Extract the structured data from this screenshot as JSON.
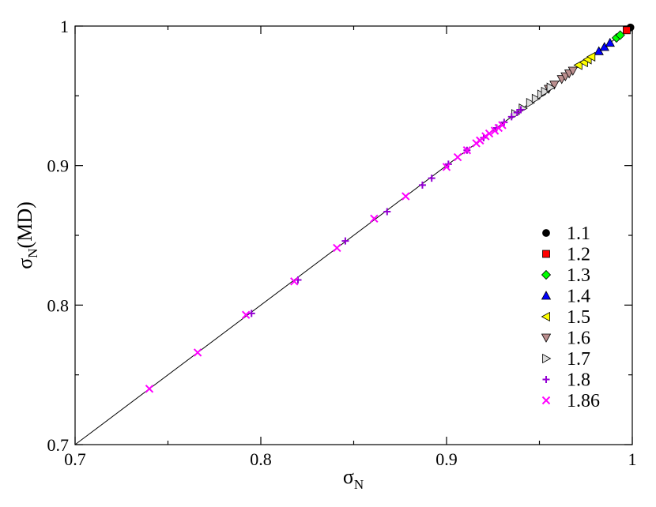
{
  "chart_data": {
    "type": "scatter",
    "x_label": [
      "σ",
      "N"
    ],
    "y_label": [
      "σ",
      "N",
      "(MD)"
    ],
    "xlim": [
      0.7,
      1.0
    ],
    "ylim": [
      0.7,
      1.0
    ],
    "xticks": [
      0.7,
      0.8,
      0.9,
      1
    ],
    "yticks": [
      0.7,
      0.8,
      0.9,
      1
    ],
    "minor_ticks": [
      0.75,
      0.85,
      0.95
    ],
    "diagonal": true,
    "legend": "right",
    "series": [
      {
        "name": "1.1",
        "marker": "circle",
        "color": "#000000",
        "x": [
          0.999
        ],
        "y": [
          0.999
        ]
      },
      {
        "name": "1.2",
        "marker": "square",
        "color": "#ff0000",
        "x": [
          0.997
        ],
        "y": [
          0.997
        ]
      },
      {
        "name": "1.3",
        "marker": "diamond",
        "color": "#00ff00",
        "x": [
          0.9915,
          0.9935
        ],
        "y": [
          0.9915,
          0.9935
        ]
      },
      {
        "name": "1.4",
        "marker": "triangle-up",
        "color": "#0000ff",
        "x": [
          0.982,
          0.985,
          0.988
        ],
        "y": [
          0.982,
          0.985,
          0.988
        ]
      },
      {
        "name": "1.5",
        "marker": "triangle-left",
        "color": "#ffff00",
        "x": [
          0.971,
          0.974,
          0.976,
          0.978
        ],
        "y": [
          0.972,
          0.974,
          0.976,
          0.978
        ]
      },
      {
        "name": "1.6",
        "marker": "triangle-down",
        "color": "#bc8f8f",
        "x": [
          0.955,
          0.958,
          0.962,
          0.964,
          0.966,
          0.968
        ],
        "y": [
          0.955,
          0.958,
          0.962,
          0.964,
          0.966,
          0.968
        ]
      },
      {
        "name": "1.7",
        "marker": "triangle-right",
        "color": "#dcdcdc",
        "x": [
          0.937,
          0.941,
          0.945,
          0.948,
          0.951,
          0.953,
          0.956
        ],
        "y": [
          0.937,
          0.941,
          0.945,
          0.948,
          0.951,
          0.953,
          0.956
        ]
      },
      {
        "name": "1.8",
        "marker": "plus",
        "color": "#9400d3",
        "x": [
          0.795,
          0.82,
          0.8455,
          0.868,
          0.887,
          0.892,
          0.901,
          0.911,
          0.92,
          0.927,
          0.931,
          0.935,
          0.938,
          0.94
        ],
        "y": [
          0.794,
          0.818,
          0.846,
          0.867,
          0.886,
          0.891,
          0.901,
          0.911,
          0.92,
          0.927,
          0.931,
          0.935,
          0.938,
          0.94
        ]
      },
      {
        "name": "1.86",
        "marker": "cross",
        "color": "#ff00ff",
        "x": [
          0.74,
          0.766,
          0.792,
          0.818,
          0.841,
          0.861,
          0.878,
          0.9,
          0.906,
          0.911,
          0.916,
          0.918,
          0.921,
          0.923,
          0.926,
          0.928,
          0.93
        ],
        "y": [
          0.74,
          0.766,
          0.793,
          0.817,
          0.841,
          0.862,
          0.878,
          0.899,
          0.906,
          0.911,
          0.916,
          0.918,
          0.921,
          0.923,
          0.925,
          0.927,
          0.929
        ]
      }
    ]
  }
}
